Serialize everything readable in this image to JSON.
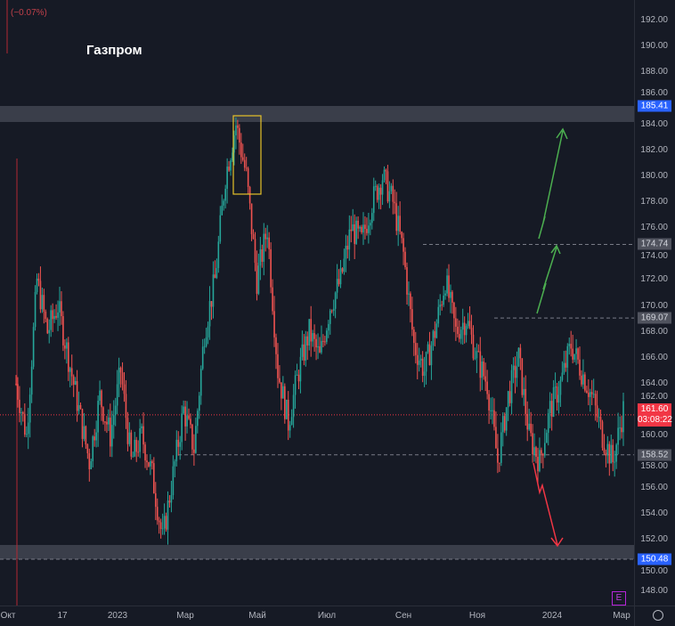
{
  "title": "Газпром",
  "change_label": "(−0.07%)",
  "chart_data": {
    "type": "candlestick",
    "title": "Газпром",
    "ylim": [
      147,
      193
    ],
    "y_ticks": [
      192,
      190,
      188,
      186,
      184,
      182,
      180,
      178,
      176,
      174,
      172,
      170,
      168,
      166,
      164,
      162,
      160,
      158,
      156,
      154,
      152,
      150,
      148
    ],
    "x_ticks": [
      "Окт",
      "17",
      "2023",
      "Мар",
      "Май",
      "Июл",
      "Сен",
      "Ноя",
      "2024",
      "Мар"
    ],
    "approx_closes": [
      164,
      160,
      172,
      168,
      170,
      166,
      162,
      158,
      163,
      160,
      165,
      158,
      160,
      157,
      152,
      157,
      162,
      159,
      168,
      172,
      180,
      184,
      180,
      172,
      176,
      165,
      161,
      165,
      168,
      166,
      170,
      172,
      176,
      175,
      178,
      180,
      178,
      174,
      167,
      165,
      168,
      172,
      168,
      169,
      166,
      164,
      158,
      163,
      166,
      160,
      158,
      162,
      164,
      167,
      165,
      163,
      160,
      158,
      162
    ],
    "levels": [
      {
        "price": 185.41,
        "label": "185.41",
        "kind": "zone"
      },
      {
        "price": 174.74,
        "label": "174.74",
        "kind": "dashed"
      },
      {
        "price": 169.07,
        "label": "169.07",
        "kind": "dashed"
      },
      {
        "price": 158.52,
        "label": "158.52",
        "kind": "dashed"
      },
      {
        "price": 150.48,
        "label": "150.48",
        "kind": "zone"
      }
    ],
    "current_price": {
      "label": "161.60",
      "countdown": "03:08:22",
      "price": 161.6
    },
    "colors": {
      "up": "#26a69a",
      "down": "#ef5350",
      "zone": "#3a3e4a",
      "arrow_up": "#4caf50",
      "arrow_down": "#f23645",
      "box": "#e6c229"
    }
  },
  "badge": "E"
}
